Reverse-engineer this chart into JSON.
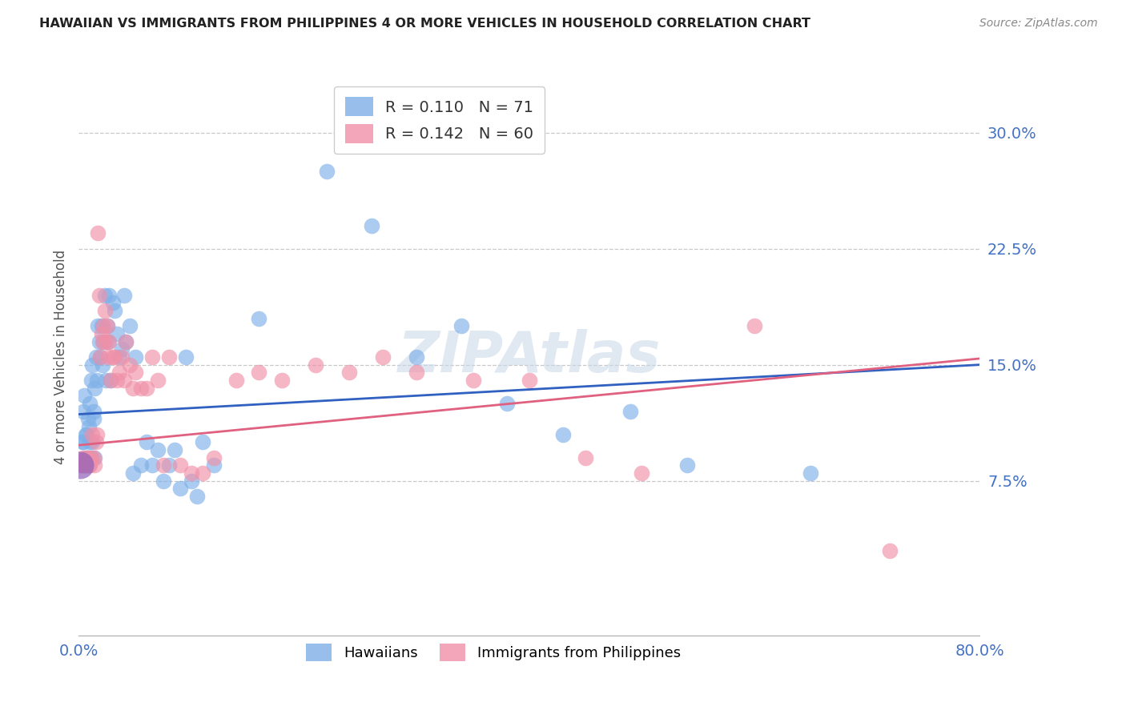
{
  "title": "HAWAIIAN VS IMMIGRANTS FROM PHILIPPINES 4 OR MORE VEHICLES IN HOUSEHOLD CORRELATION CHART",
  "source": "Source: ZipAtlas.com",
  "ylabel": "4 or more Vehicles in Household",
  "xlim": [
    0.0,
    0.8
  ],
  "ylim": [
    -0.025,
    0.335
  ],
  "ytick_vals": [
    0.075,
    0.15,
    0.225,
    0.3
  ],
  "ytick_labels": [
    "7.5%",
    "15.0%",
    "22.5%",
    "30.0%"
  ],
  "xtick_vals": [
    0.0,
    0.1,
    0.2,
    0.3,
    0.4,
    0.5,
    0.6,
    0.7,
    0.8
  ],
  "xtick_labels": [
    "0.0%",
    "",
    "",
    "",
    "",
    "",
    "",
    "",
    "80.0%"
  ],
  "hawaiian_color": "#7eb0e8",
  "philippines_color": "#f090a8",
  "hawaiian_line_color": "#3060c0",
  "philippines_line_color": "#e06080",
  "hawaiian_R": 0.11,
  "hawaiian_N": 71,
  "philippines_R": 0.142,
  "philippines_N": 60,
  "watermark": "ZIPAtlas",
  "h_trend_x0": 0.0,
  "h_trend_y0": 0.118,
  "h_trend_x1": 0.8,
  "h_trend_y1": 0.15,
  "p_trend_x0": 0.0,
  "p_trend_y0": 0.098,
  "p_trend_x1": 0.8,
  "p_trend_y1": 0.154,
  "hawaiian_x": [
    0.002,
    0.003,
    0.004,
    0.004,
    0.005,
    0.005,
    0.006,
    0.006,
    0.007,
    0.007,
    0.008,
    0.008,
    0.009,
    0.009,
    0.01,
    0.01,
    0.011,
    0.011,
    0.012,
    0.012,
    0.013,
    0.013,
    0.014,
    0.014,
    0.015,
    0.016,
    0.017,
    0.018,
    0.019,
    0.02,
    0.021,
    0.022,
    0.023,
    0.024,
    0.025,
    0.026,
    0.027,
    0.028,
    0.03,
    0.032,
    0.034,
    0.036,
    0.038,
    0.04,
    0.042,
    0.045,
    0.048,
    0.05,
    0.055,
    0.06,
    0.065,
    0.07,
    0.075,
    0.08,
    0.085,
    0.09,
    0.095,
    0.1,
    0.105,
    0.11,
    0.12,
    0.16,
    0.22,
    0.26,
    0.3,
    0.34,
    0.38,
    0.43,
    0.49,
    0.54,
    0.65
  ],
  "hawaiian_y": [
    0.085,
    0.1,
    0.1,
    0.12,
    0.085,
    0.13,
    0.085,
    0.105,
    0.09,
    0.105,
    0.09,
    0.115,
    0.085,
    0.11,
    0.1,
    0.125,
    0.09,
    0.14,
    0.1,
    0.15,
    0.115,
    0.12,
    0.09,
    0.135,
    0.155,
    0.14,
    0.175,
    0.165,
    0.155,
    0.175,
    0.15,
    0.165,
    0.195,
    0.14,
    0.175,
    0.165,
    0.195,
    0.14,
    0.19,
    0.185,
    0.17,
    0.155,
    0.16,
    0.195,
    0.165,
    0.175,
    0.08,
    0.155,
    0.085,
    0.1,
    0.085,
    0.095,
    0.075,
    0.085,
    0.095,
    0.07,
    0.155,
    0.075,
    0.065,
    0.1,
    0.085,
    0.18,
    0.275,
    0.24,
    0.155,
    0.175,
    0.125,
    0.105,
    0.12,
    0.085,
    0.08
  ],
  "philippines_x": [
    0.002,
    0.003,
    0.004,
    0.005,
    0.006,
    0.007,
    0.008,
    0.009,
    0.01,
    0.011,
    0.012,
    0.013,
    0.014,
    0.015,
    0.016,
    0.017,
    0.018,
    0.019,
    0.02,
    0.021,
    0.022,
    0.023,
    0.024,
    0.025,
    0.026,
    0.027,
    0.028,
    0.03,
    0.032,
    0.034,
    0.036,
    0.038,
    0.04,
    0.042,
    0.045,
    0.048,
    0.05,
    0.055,
    0.06,
    0.065,
    0.07,
    0.075,
    0.08,
    0.09,
    0.1,
    0.11,
    0.12,
    0.14,
    0.16,
    0.18,
    0.21,
    0.24,
    0.27,
    0.3,
    0.35,
    0.4,
    0.45,
    0.5,
    0.6,
    0.72
  ],
  "philippines_y": [
    0.085,
    0.09,
    0.085,
    0.085,
    0.09,
    0.085,
    0.09,
    0.085,
    0.085,
    0.09,
    0.105,
    0.09,
    0.085,
    0.1,
    0.105,
    0.235,
    0.195,
    0.155,
    0.17,
    0.165,
    0.175,
    0.185,
    0.165,
    0.175,
    0.155,
    0.165,
    0.14,
    0.155,
    0.155,
    0.14,
    0.145,
    0.155,
    0.14,
    0.165,
    0.15,
    0.135,
    0.145,
    0.135,
    0.135,
    0.155,
    0.14,
    0.085,
    0.155,
    0.085,
    0.08,
    0.08,
    0.09,
    0.14,
    0.145,
    0.14,
    0.15,
    0.145,
    0.155,
    0.145,
    0.14,
    0.14,
    0.09,
    0.08,
    0.175,
    0.03
  ]
}
